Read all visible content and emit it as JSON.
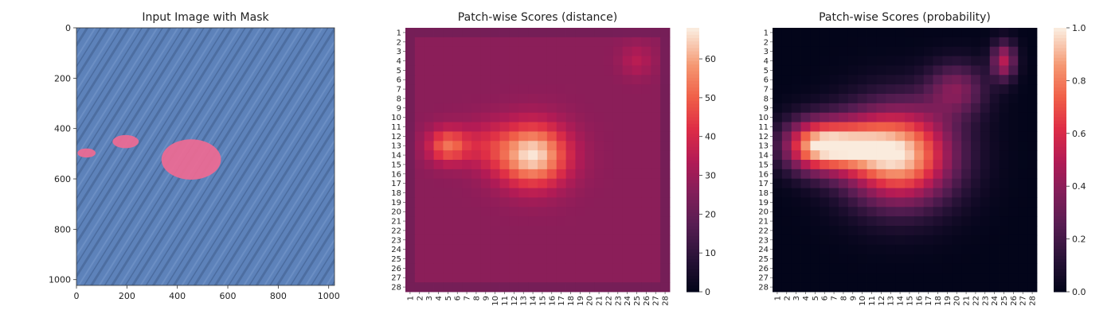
{
  "chart_data": [
    {
      "type": "image",
      "title": "Input Image with Mask",
      "xlim": [
        0,
        1023
      ],
      "ylim": [
        1023,
        0
      ],
      "xticks": [
        0,
        200,
        400,
        600,
        800,
        1000
      ],
      "yticks": [
        0,
        200,
        400,
        600,
        800,
        1000
      ],
      "colors": {
        "background": "#5a7fb8",
        "mask": "#ef6a93"
      },
      "mask_regions": [
        {
          "cx": 40,
          "cy": 497,
          "rx": 36,
          "ry": 18
        },
        {
          "cx": 195,
          "cy": 452,
          "rx": 52,
          "ry": 26
        },
        {
          "cx": 455,
          "cy": 523,
          "rx": 118,
          "ry": 80
        }
      ]
    },
    {
      "type": "heatmap",
      "title": "Patch-wise Scores (distance)",
      "rows": 28,
      "cols": 28,
      "tick_labels": [
        "1",
        "2",
        "3",
        "4",
        "5",
        "6",
        "7",
        "8",
        "9",
        "10",
        "11",
        "12",
        "13",
        "14",
        "15",
        "16",
        "17",
        "18",
        "19",
        "20",
        "21",
        "22",
        "23",
        "24",
        "25",
        "26",
        "27",
        "28"
      ],
      "colorbar": {
        "min": 0,
        "max": 68,
        "ticks": [
          0,
          10,
          20,
          30,
          40,
          50,
          60
        ]
      },
      "baseline": 27,
      "hotspots": [
        {
          "row": 14,
          "col": 14,
          "amp": 40,
          "sx": 2.6,
          "sy": 2.3
        },
        {
          "row": 13,
          "col": 5,
          "amp": 25,
          "sx": 1.5,
          "sy": 1.3
        },
        {
          "row": 13,
          "col": 9,
          "amp": 10,
          "sx": 2.0,
          "sy": 1.8
        },
        {
          "row": 4,
          "col": 25,
          "amp": 8,
          "sx": 1.2,
          "sy": 1.2
        }
      ]
    },
    {
      "type": "heatmap",
      "title": "Patch-wise Scores (probability)",
      "rows": 28,
      "cols": 28,
      "tick_labels": [
        "1",
        "2",
        "3",
        "4",
        "5",
        "6",
        "7",
        "8",
        "9",
        "10",
        "11",
        "12",
        "13",
        "14",
        "15",
        "16",
        "17",
        "18",
        "19",
        "20",
        "21",
        "22",
        "23",
        "24",
        "25",
        "26",
        "27",
        "28"
      ],
      "colorbar": {
        "min": 0.0,
        "max": 1.0,
        "ticks": [
          0.0,
          0.2,
          0.4,
          0.6,
          0.8,
          1.0
        ]
      },
      "tick_format": "1dp",
      "baseline": 0.0,
      "hotspots": [
        {
          "row": 14,
          "col": 14,
          "amp": 0.95,
          "sx": 4.0,
          "sy": 3.6
        },
        {
          "row": 13,
          "col": 5,
          "amp": 0.8,
          "sx": 2.4,
          "sy": 1.9
        },
        {
          "row": 13,
          "col": 9,
          "amp": 0.45,
          "sx": 2.6,
          "sy": 2.0
        },
        {
          "row": 4,
          "col": 25,
          "amp": 0.5,
          "sx": 0.9,
          "sy": 1.4
        },
        {
          "row": 7,
          "col": 20,
          "amp": 0.35,
          "sx": 2.2,
          "sy": 2.0
        }
      ]
    }
  ]
}
